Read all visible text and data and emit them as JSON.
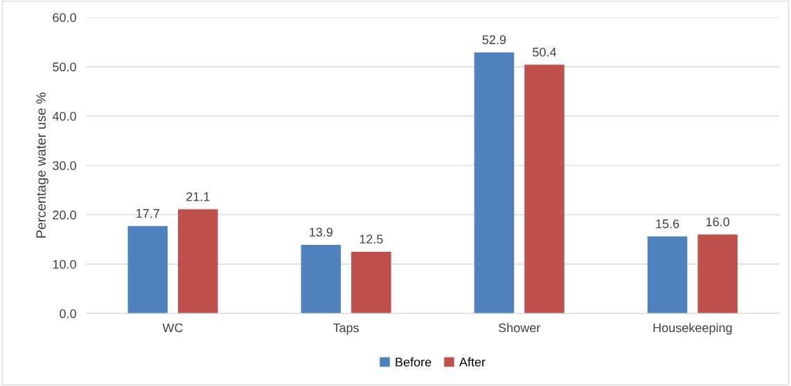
{
  "chart_data": {
    "type": "bar",
    "ylabel": "Percentage water use %",
    "categories": [
      "WC",
      "Taps",
      "Shower",
      "Housekeeping"
    ],
    "series": [
      {
        "name": "Before",
        "color": "#4f81bd",
        "values": [
          17.7,
          13.9,
          52.9,
          15.6
        ],
        "value_labels": [
          "17.7",
          "13.9",
          "52.9",
          "15.6"
        ]
      },
      {
        "name": "After",
        "color": "#c0504d",
        "values": [
          21.1,
          12.5,
          50.4,
          16.0
        ],
        "value_labels": [
          "21.1",
          "12.5",
          "50.4",
          "16.0"
        ]
      }
    ],
    "ylim": [
      0,
      60
    ],
    "yticks": [
      {
        "value": 0,
        "label": "0.0"
      },
      {
        "value": 10,
        "label": "10.0"
      },
      {
        "value": 20,
        "label": "20.0"
      },
      {
        "value": 30,
        "label": "30.0"
      },
      {
        "value": 40,
        "label": "40.0"
      },
      {
        "value": 50,
        "label": "50.0"
      },
      {
        "value": 60,
        "label": "60.0"
      }
    ],
    "grid": "y",
    "legend": "bottom"
  }
}
